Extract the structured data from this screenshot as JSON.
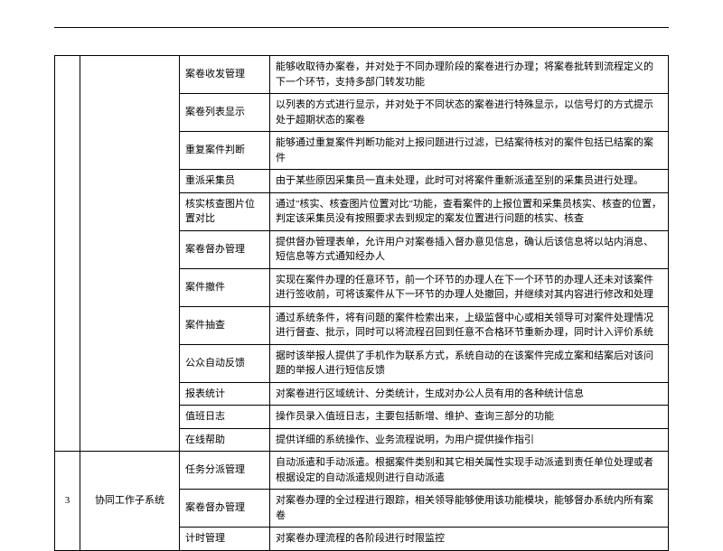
{
  "rows": [
    {
      "id": "",
      "sys": "",
      "func": "案卷收发管理",
      "desc": "能够收取待办案卷，并对处于不同办理阶段的案卷进行办理；将案卷批转到流程定义的下一个环节，支持多部门转发功能"
    },
    {
      "id": "",
      "sys": "",
      "func": "案卷列表显示",
      "desc": "以列表的方式进行显示，并对处于不同状态的案卷进行特殊显示，以信号灯的方式提示处于超期状态的案卷"
    },
    {
      "id": "",
      "sys": "",
      "func": "重复案件判断",
      "desc": "能够通过重复案件判断功能对上报问题进行过滤，已结案待核对的案件包括已结案的案件"
    },
    {
      "id": "",
      "sys": "",
      "func": "重派采集员",
      "desc": "由于某些原因采集员一直未处理，此时可对将案件重新派遣至别的采集员进行处理。"
    },
    {
      "id": "",
      "sys": "",
      "func": "核实核查图片位置对比",
      "desc": "通过\"核实、核查图片位置对比\"功能，查看案件的上报位置和采集员核实、核查的位置，判定该采集员没有按照要求去到规定的案发位置进行问题的核实、核查"
    },
    {
      "id": "",
      "sys": "",
      "func": "案卷督办管理",
      "desc": "提供督办管理表单，允许用户对案卷插入督办意见信息，确认后该信息将以站内消息、短信息等方式通知经办人"
    },
    {
      "id": "",
      "sys": "",
      "func": "案件撤件",
      "desc": "实现在案件办理的任意环节，前一个环节的办理人在下一个环节的办理人还未对该案件进行签收前，可将该案件从下一环节的办理人处撤回，并继续对其内容进行修改和处理"
    },
    {
      "id": "",
      "sys": "",
      "func": "案件抽查",
      "desc": "通过系统条件，将有问题的案件检索出来，上级监督中心或相关领导可对案件处理情况进行督查、批示，同时可以将流程召回到任意不合格环节重新办理，同时计入评价系统"
    },
    {
      "id": "",
      "sys": "",
      "func": "公众自动反馈",
      "desc": "据时该举报人提供了手机作为联系方式，系统自动的在该案件完成立案和结案后对该问题的举报人进行短信反馈"
    },
    {
      "id": "",
      "sys": "",
      "func": "报表统计",
      "desc": "对案卷进行区域统计、分类统计，生成对办公人员有用的各种统计信息"
    },
    {
      "id": "",
      "sys": "",
      "func": "值班日志",
      "desc": "操作员录入值班日志，主要包括新增、维护、查询三部分的功能"
    },
    {
      "id": "",
      "sys": "",
      "func": "在线帮助",
      "desc": "提供详细的系统操作、业务流程说明，为用户提供操作指引"
    },
    {
      "id": "3",
      "sys": "协同工作子系统",
      "func": "任务分派管理",
      "desc": "自动派遣和手动派遣。根据案件类别和其它相关属性实现手动派遣到责任单位处理或者根据设定的自动派遣规则进行自动派遣",
      "rowspan": 3
    },
    {
      "id": "",
      "sys": "",
      "func": "案卷督办管理",
      "desc": "对案卷办理的全过程进行跟踪，相关领导能够使用该功能模块，能够督办系统内所有案卷"
    },
    {
      "id": "",
      "sys": "",
      "func": "计时管理",
      "desc": "对案卷办理流程的各阶段进行时限监控"
    }
  ]
}
